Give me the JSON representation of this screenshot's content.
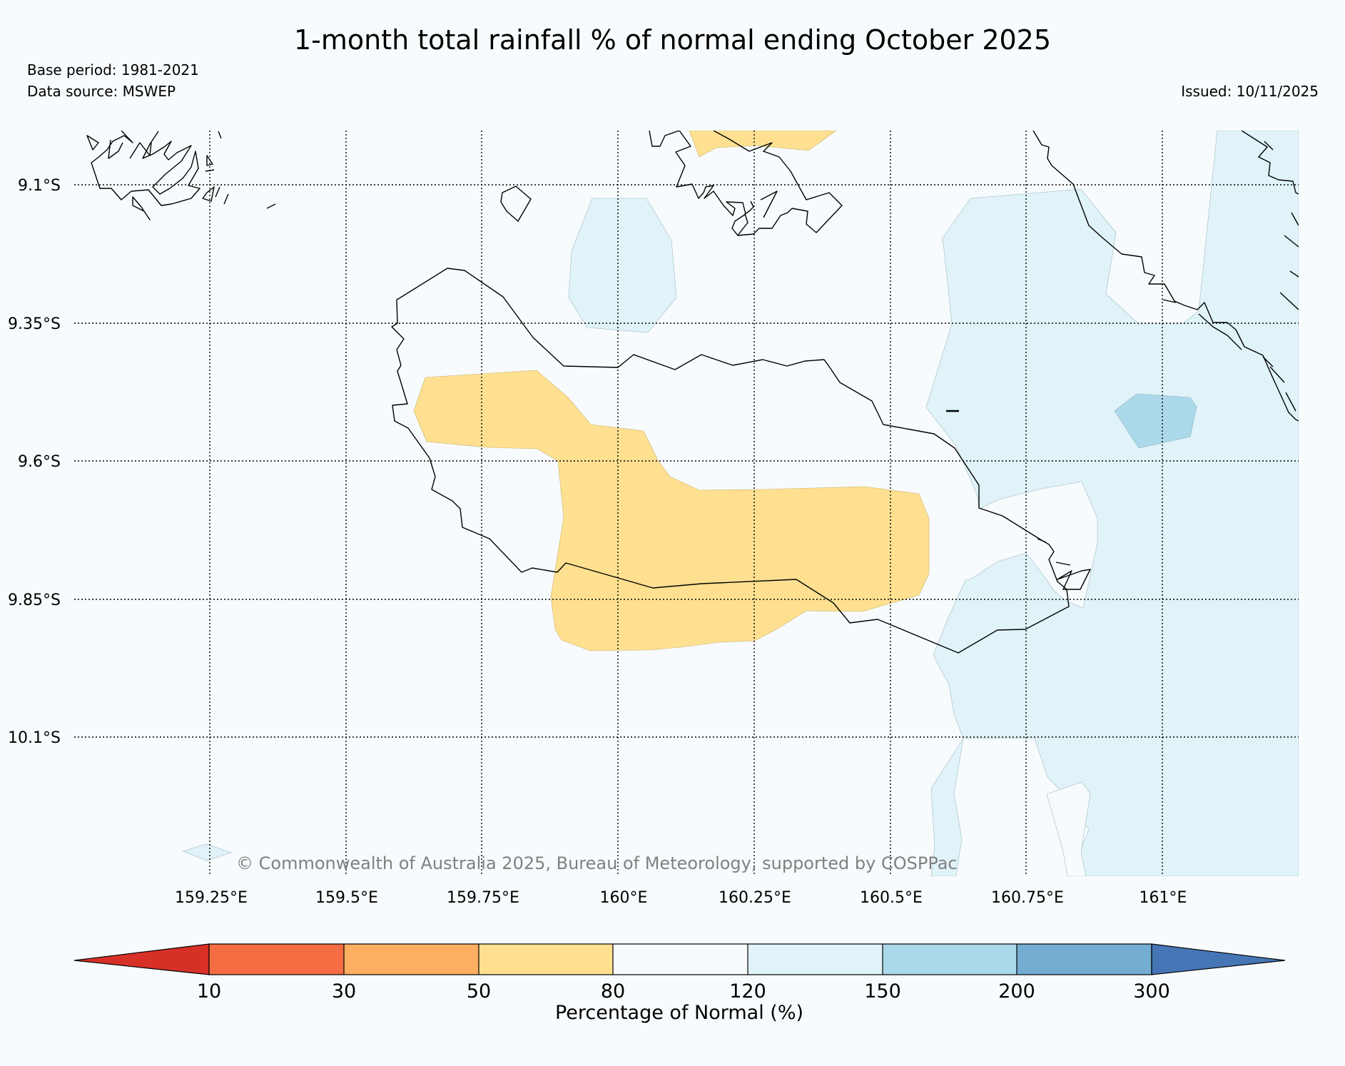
{
  "header": {
    "title": "1-month total rainfall % of normal ending October 2025",
    "base_period": "Base period: 1981-2021",
    "data_source": "Data source: MSWEP",
    "issued": "Issued: 10/11/2025"
  },
  "map": {
    "lat_labels": [
      "9.1°S",
      "9.35°S",
      "9.6°S",
      "9.85°S",
      "10.1°S"
    ],
    "lon_labels": [
      "159.25°E",
      "159.5°E",
      "159.75°E",
      "160°E",
      "160.25°E",
      "160.5°E",
      "160.75°E",
      "161°E"
    ],
    "copyright": "© Commonwealth of Australia 2025, Bureau of Meteorology, supported by COSPPac",
    "extent": {
      "lon_min": 159.0,
      "lon_max": 161.25,
      "lat_min": -10.35,
      "lat_max": -9.0
    }
  },
  "colorbar": {
    "title": "Percentage of Normal (%)",
    "ticks": [
      "10",
      "30",
      "50",
      "80",
      "120",
      "150",
      "200",
      "300"
    ],
    "colors": [
      "#d73027",
      "#f46d43",
      "#fdae61",
      "#fee090",
      "#f7fbfd",
      "#e0f3f8",
      "#abd9e9",
      "#74add1",
      "#4575b4"
    ]
  },
  "legend_categories": [
    {
      "range": "<10",
      "color": "#d73027"
    },
    {
      "range": "10-30",
      "color": "#f46d43"
    },
    {
      "range": "30-50",
      "color": "#fdae61"
    },
    {
      "range": "50-80",
      "color": "#fee090"
    },
    {
      "range": "80-120",
      "color": "#f7fbfd"
    },
    {
      "range": "120-150",
      "color": "#e0f3f8"
    },
    {
      "range": "150-200",
      "color": "#abd9e9"
    },
    {
      "range": "200-300",
      "color": "#74add1"
    },
    {
      "range": ">300",
      "color": "#4575b4"
    }
  ]
}
